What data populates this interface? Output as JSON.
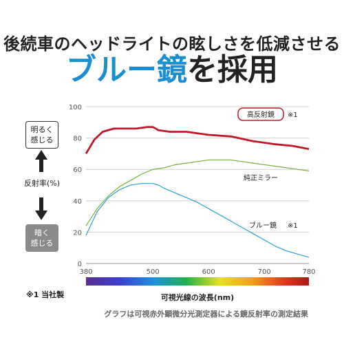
{
  "headline": {
    "line1": "後続車のヘッドライトの眩しさを低減させる",
    "line2_blue": "ブルー鏡",
    "line2_rest": "を採用"
  },
  "side": {
    "bright_line1": "明るく",
    "bright_line2": "感じる",
    "label": "反射率(%)",
    "dark_line1": "暗く",
    "dark_line2": "感じる"
  },
  "footnote": "※1 当社製",
  "caption": "グラフは可視赤外顕微分光測定器による鏡反射率の測定結果",
  "colors": {
    "high_reflect": "#c0182a",
    "pure": "#78b043",
    "blue": "#2e9ed8",
    "grid": "#d0d0d0",
    "arrow": "#222222"
  },
  "icons": [
    "arrow-up-icon",
    "arrow-down-icon"
  ],
  "chart_data": {
    "type": "line",
    "xlabel": "可視光線の波長(nm)",
    "ylabel": "反射率(%)",
    "xlim": [
      380,
      780
    ],
    "ylim": [
      0,
      100
    ],
    "xticks": [
      380,
      500,
      600,
      700,
      780
    ],
    "yticks": [
      0,
      20,
      40,
      60,
      80,
      100
    ],
    "grid": true,
    "series": [
      {
        "name": "高反射鏡",
        "note": "※1",
        "color": "#c0182a",
        "x": [
          380,
          395,
          410,
          430,
          450,
          470,
          490,
          500,
          510,
          530,
          560,
          600,
          640,
          680,
          720,
          750,
          780
        ],
        "y": [
          70,
          79,
          84,
          86,
          86,
          86,
          87,
          87,
          85,
          84,
          84,
          82,
          81,
          78,
          76,
          75,
          73
        ]
      },
      {
        "name": "純正ミラー",
        "color": "#78b043",
        "x": [
          380,
          400,
          420,
          440,
          460,
          480,
          500,
          520,
          540,
          560,
          580,
          600,
          620,
          640,
          660,
          680,
          700,
          720,
          740,
          760,
          780
        ],
        "y": [
          24,
          35,
          43,
          49,
          53,
          57,
          60,
          61,
          63,
          64,
          65,
          66,
          66,
          66,
          65,
          64,
          63,
          62,
          61,
          60,
          59
        ]
      },
      {
        "name": "ブルー鏡",
        "note": "※1",
        "color": "#2e9ed8",
        "x": [
          380,
          400,
          420,
          440,
          460,
          480,
          490,
          500,
          510,
          520,
          540,
          560,
          580,
          600,
          620,
          640,
          660,
          680,
          700,
          720,
          740,
          760,
          780
        ],
        "y": [
          18,
          33,
          42,
          47,
          50,
          51,
          51,
          51,
          50,
          48,
          45,
          42,
          39,
          35,
          31,
          27,
          23,
          19,
          15,
          11,
          8,
          6,
          4
        ]
      }
    ]
  }
}
